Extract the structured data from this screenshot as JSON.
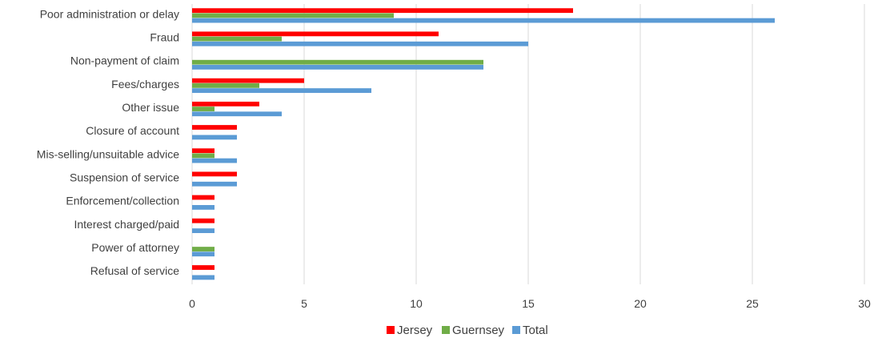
{
  "chart_data": {
    "type": "bar",
    "orientation": "horizontal",
    "categories": [
      "Poor administration or delay",
      "Fraud",
      "Non-payment of claim",
      "Fees/charges",
      "Other issue",
      "Closure of account",
      "Mis-selling/unsuitable advice",
      "Suspension of service",
      "Enforcement/collection",
      "Interest charged/paid",
      "Power of attorney",
      "Refusal of service"
    ],
    "series": [
      {
        "name": "Jersey",
        "color": "#ff0000",
        "values": [
          17,
          11,
          0,
          5,
          3,
          2,
          1,
          2,
          1,
          1,
          0,
          1
        ]
      },
      {
        "name": "Guernsey",
        "color": "#70ad47",
        "values": [
          9,
          4,
          13,
          3,
          1,
          0,
          1,
          0,
          0,
          0,
          1,
          0
        ]
      },
      {
        "name": "Total",
        "color": "#5b9bd5",
        "values": [
          26,
          15,
          13,
          8,
          4,
          2,
          2,
          2,
          1,
          1,
          1,
          1
        ]
      }
    ],
    "xlim": [
      0,
      30
    ],
    "xticks": [
      0,
      5,
      10,
      15,
      20,
      25,
      30
    ],
    "grid": true,
    "legend_position": "bottom"
  }
}
